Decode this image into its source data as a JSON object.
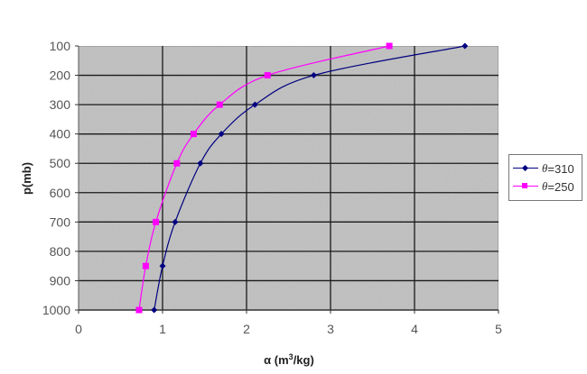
{
  "chart_data": {
    "type": "line",
    "title": "",
    "xlabel": "α (m³/kg)",
    "ylabel": "p(mb)",
    "xlim": [
      0,
      5
    ],
    "ylim": [
      1000,
      100
    ],
    "y_inverted": true,
    "x_ticks": [
      "0",
      "1",
      "2",
      "3",
      "4",
      "5"
    ],
    "y_ticks": [
      "100",
      "200",
      "300",
      "400",
      "500",
      "600",
      "700",
      "800",
      "900",
      "1000"
    ],
    "grid": true,
    "background": "#c0c0c0",
    "legend_position": "right",
    "series": [
      {
        "name": "θ=310",
        "color": "#000080",
        "marker": "diamond",
        "p": [
          1000,
          850,
          700,
          500,
          400,
          300,
          200,
          100
        ],
        "alpha": [
          0.9,
          1.0,
          1.15,
          1.45,
          1.7,
          2.1,
          2.8,
          4.6
        ]
      },
      {
        "name": "θ=250",
        "color": "#ff00ff",
        "marker": "square",
        "p": [
          1000,
          850,
          700,
          500,
          400,
          300,
          200,
          100
        ],
        "alpha": [
          0.72,
          0.8,
          0.92,
          1.17,
          1.37,
          1.68,
          2.25,
          3.7
        ]
      }
    ]
  },
  "legend": {
    "items": [
      {
        "symbol": "θ",
        "value": "=310"
      },
      {
        "symbol": "θ",
        "value": "=250"
      }
    ]
  }
}
